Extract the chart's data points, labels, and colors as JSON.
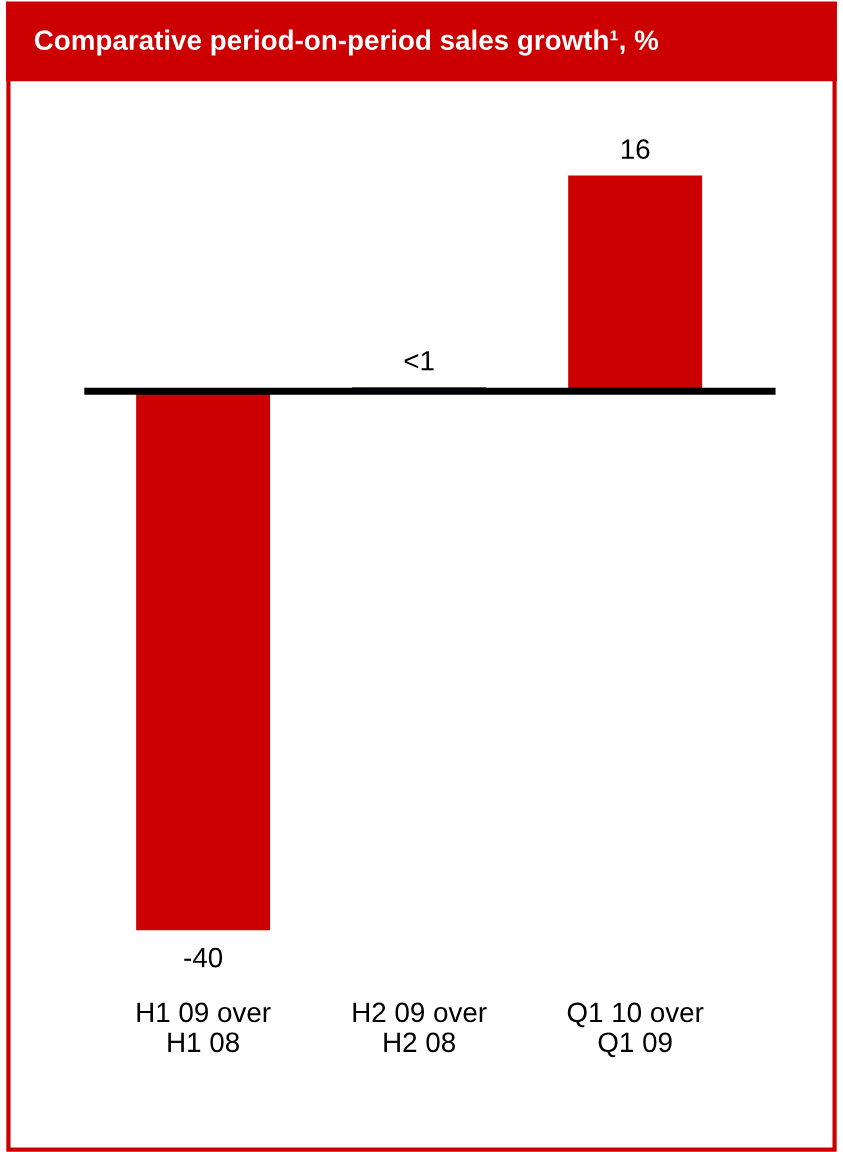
{
  "chart_data": {
    "type": "bar",
    "title": "Comparative period-on-period sales growth¹, %",
    "categories": [
      "H1 09 over\nH1 08",
      "H2 09 over\nH2 08",
      "Q1 10 over\nQ1 09"
    ],
    "values": [
      -40,
      0.3,
      16
    ],
    "value_labels": [
      "-40",
      "<1",
      "16"
    ],
    "color": "#cc0000",
    "grid": false,
    "legend": false
  }
}
